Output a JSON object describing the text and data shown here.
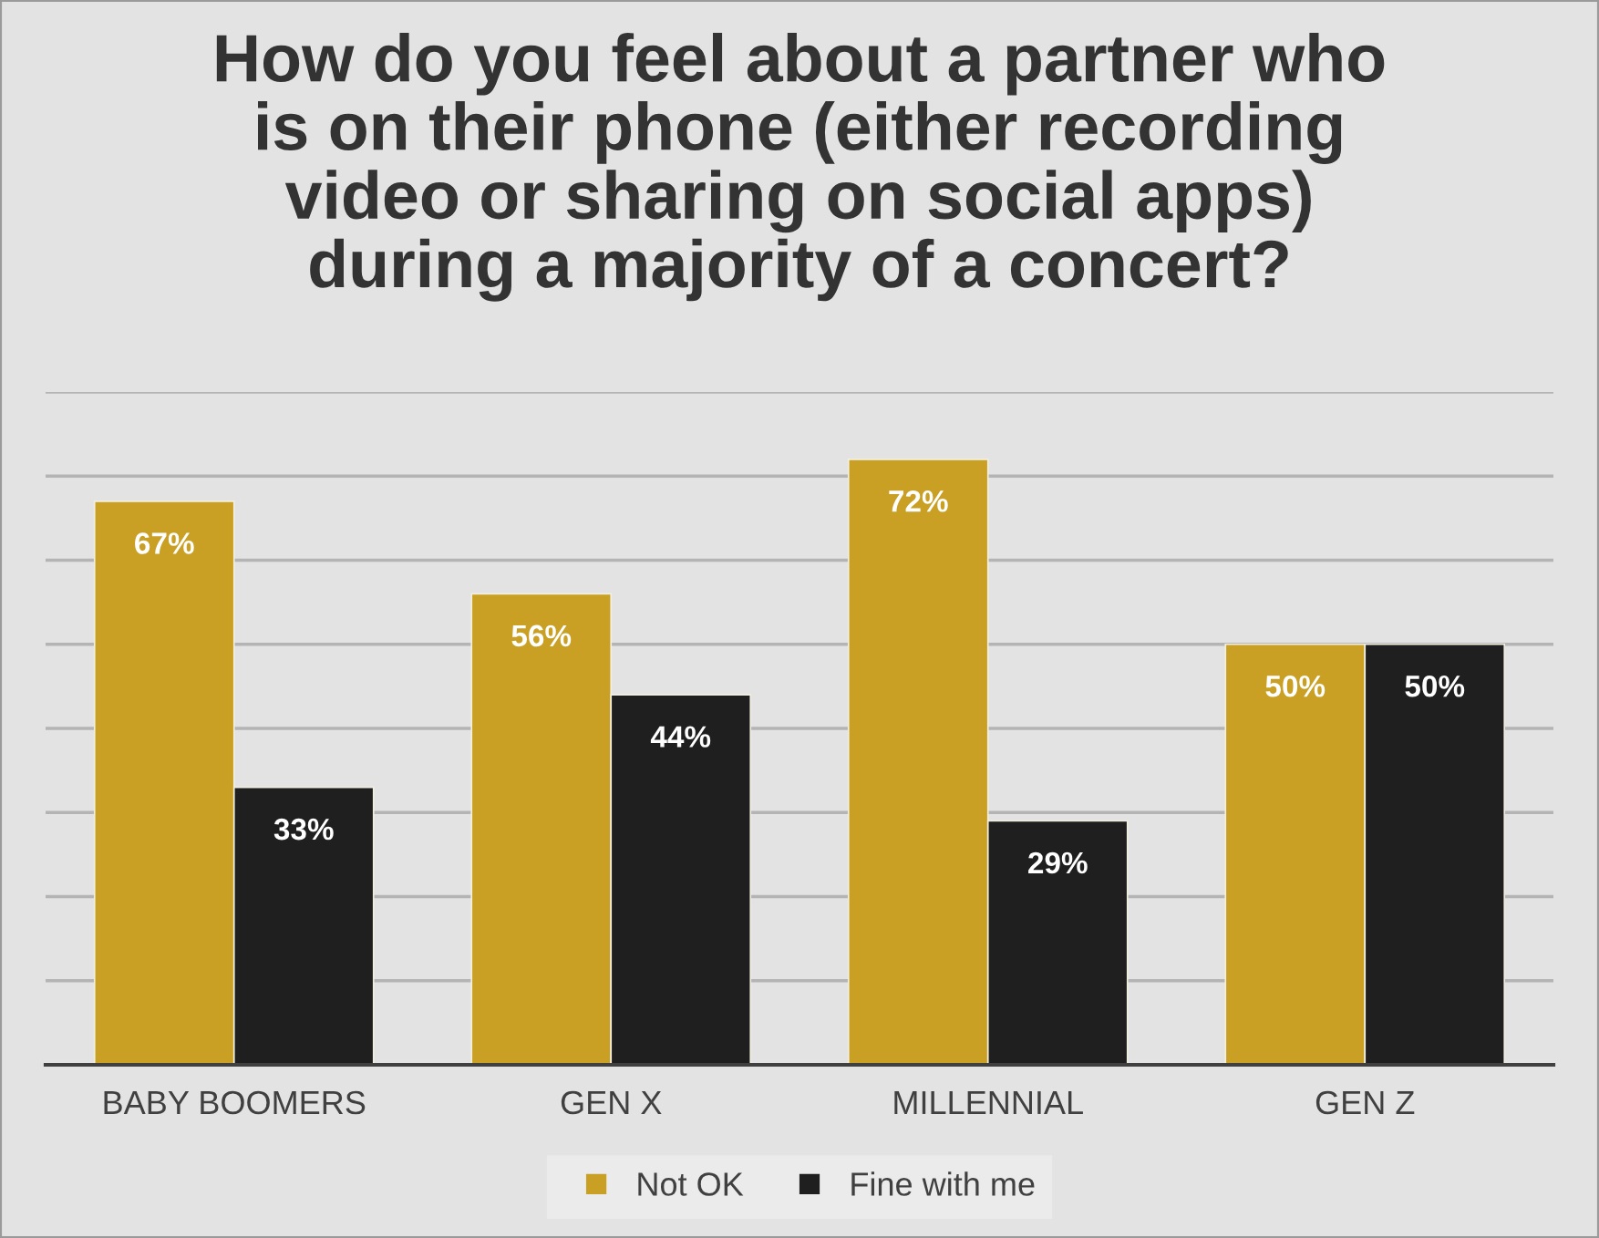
{
  "chart_data": {
    "type": "bar",
    "title": "How do you feel about a partner who\nis on their phone (either recording\nvideo or sharing on social apps)\nduring a majority of a concert?",
    "categories": [
      "BABY BOOMERS",
      "GEN X",
      "MILLENNIAL",
      "GEN Z"
    ],
    "series": [
      {
        "name": "Not OK",
        "color": "#c9a024",
        "values": [
          67,
          56,
          72,
          50
        ],
        "value_labels": [
          "67%",
          "56%",
          "72%",
          "50%"
        ]
      },
      {
        "name": "Fine with me",
        "color": "#1f1f1f",
        "values": [
          33,
          44,
          29,
          50
        ],
        "value_labels": [
          "33%",
          "44%",
          "29%",
          "50%"
        ]
      }
    ],
    "ylim": [
      0,
      80
    ],
    "yticks": [
      {
        "value": 0,
        "label": null
      },
      {
        "value": 10,
        "label": null
      },
      {
        "value": 20,
        "label": null
      },
      {
        "value": 30,
        "label": null
      },
      {
        "value": 40,
        "label": null
      },
      {
        "value": 50,
        "label": null
      },
      {
        "value": 60,
        "label": null
      },
      {
        "value": 70,
        "label": null
      },
      {
        "value": 80,
        "label": null
      }
    ],
    "grid": "y",
    "legend": "bottom",
    "tick_labels": "x"
  }
}
